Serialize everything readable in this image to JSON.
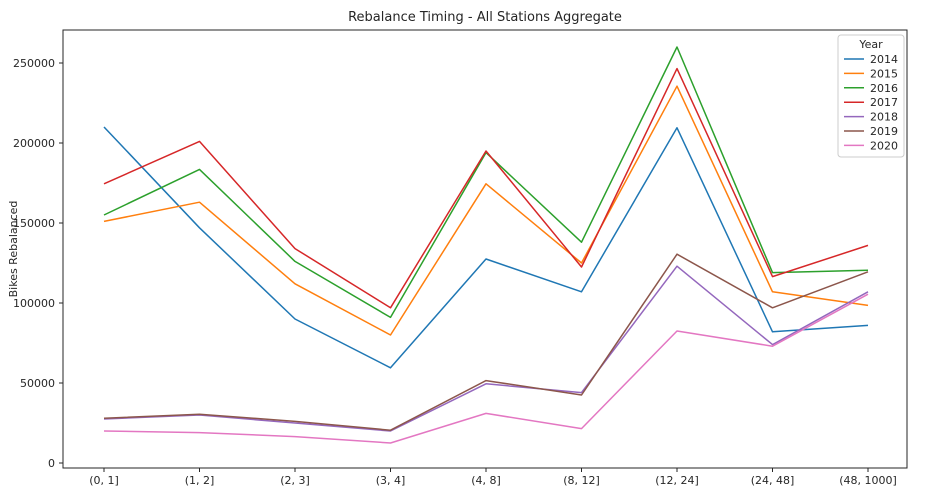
{
  "chart_data": {
    "type": "line",
    "title": "Rebalance Timing - All Stations Aggregate",
    "xlabel": "",
    "ylabel": "Bikes Rebalanced",
    "grid": false,
    "categories": [
      "(0, 1]",
      "(1, 2]",
      "(2, 3]",
      "(3, 4]",
      "(4, 8]",
      "(8, 12]",
      "(12, 24]",
      "(24, 48]",
      "(48, 1000]"
    ],
    "yticks": [
      0,
      50000,
      100000,
      150000,
      200000,
      250000
    ],
    "ytick_labels": [
      "0",
      "50000",
      "100000",
      "150000",
      "200000",
      "250000"
    ],
    "ylim": [
      -3125,
      270625
    ],
    "legend": {
      "title": "Year",
      "position": "upper right"
    },
    "series": [
      {
        "name": "2014",
        "color": "#1f77b4",
        "values": [
          210000,
          147000,
          90000,
          59500,
          127500,
          107000,
          209500,
          82000,
          86000
        ]
      },
      {
        "name": "2015",
        "color": "#ff7f0e",
        "values": [
          151000,
          163000,
          112000,
          80000,
          174500,
          125000,
          235500,
          107000,
          98500
        ]
      },
      {
        "name": "2016",
        "color": "#2ca02c",
        "values": [
          155000,
          183500,
          126000,
          91000,
          194000,
          138000,
          260000,
          119000,
          120500
        ]
      },
      {
        "name": "2017",
        "color": "#d62728",
        "values": [
          174500,
          201000,
          134000,
          97000,
          195000,
          122500,
          246500,
          116500,
          136000
        ]
      },
      {
        "name": "2018",
        "color": "#9467bd",
        "values": [
          27500,
          30000,
          25000,
          20000,
          49500,
          44000,
          123000,
          74000,
          107000
        ]
      },
      {
        "name": "2019",
        "color": "#8c564b",
        "values": [
          28000,
          30500,
          26000,
          20500,
          51500,
          42500,
          130500,
          97000,
          119500
        ]
      },
      {
        "name": "2020",
        "color": "#e377c2",
        "values": [
          20000,
          19000,
          16500,
          12500,
          31000,
          21500,
          82500,
          73000,
          105500
        ]
      }
    ]
  }
}
